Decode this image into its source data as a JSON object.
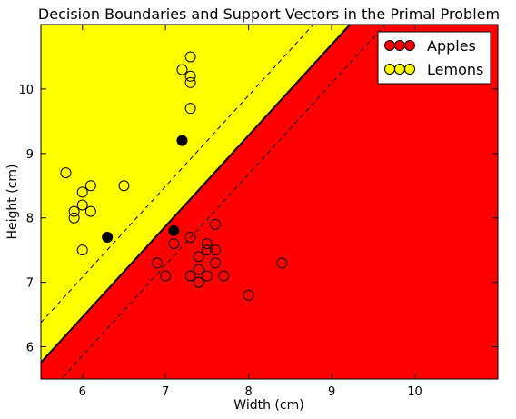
{
  "chart_data": {
    "type": "scatter",
    "title": "Decision Boundaries and Support Vectors in the Primal Problem",
    "xlabel": "Width (cm)",
    "ylabel": "Height (cm)",
    "xlim": [
      5.5,
      11.0
    ],
    "ylim": [
      5.5,
      11.0
    ],
    "xticks": [
      6,
      7,
      8,
      9,
      10
    ],
    "yticks": [
      6,
      7,
      8,
      9,
      10
    ],
    "grid": false,
    "legend_placement": "top-right",
    "regions": [
      {
        "class": "Lemons",
        "side": "above-boundary",
        "color": "#ffff00"
      },
      {
        "class": "Apples",
        "side": "below-boundary",
        "color": "#ff0000"
      }
    ],
    "boundary": {
      "slope": 1.41,
      "intercept": -2.0
    },
    "margins": [
      {
        "slope": 1.41,
        "intercept": -1.38
      },
      {
        "slope": 1.41,
        "intercept": -2.6
      }
    ],
    "series": [
      {
        "name": "Apples",
        "color": "#ff0000",
        "points": [
          [
            7.1,
            7.6
          ],
          [
            7.3,
            7.7
          ],
          [
            7.6,
            7.9
          ],
          [
            7.5,
            7.6
          ],
          [
            7.5,
            7.5
          ],
          [
            7.6,
            7.5
          ],
          [
            7.4,
            7.4
          ],
          [
            7.6,
            7.3
          ],
          [
            6.9,
            7.3
          ],
          [
            7.4,
            7.2
          ],
          [
            7.4,
            7.2
          ],
          [
            7.0,
            7.1
          ],
          [
            7.3,
            7.1
          ],
          [
            7.5,
            7.1
          ],
          [
            7.7,
            7.1
          ],
          [
            7.4,
            7.0
          ],
          [
            8.0,
            6.8
          ],
          [
            8.4,
            7.3
          ]
        ]
      },
      {
        "name": "Lemons",
        "color": "#ffff00",
        "points": [
          [
            7.3,
            10.5
          ],
          [
            7.2,
            10.3
          ],
          [
            7.3,
            10.2
          ],
          [
            7.3,
            10.1
          ],
          [
            7.3,
            9.7
          ],
          [
            5.8,
            8.7
          ],
          [
            6.1,
            8.5
          ],
          [
            6.5,
            8.5
          ],
          [
            6.0,
            8.4
          ],
          [
            6.0,
            8.2
          ],
          [
            5.9,
            8.1
          ],
          [
            6.1,
            8.1
          ],
          [
            5.9,
            8.0
          ],
          [
            6.0,
            7.5
          ]
        ]
      }
    ],
    "support_vectors": [
      [
        7.2,
        9.2
      ],
      [
        6.3,
        7.7
      ],
      [
        7.1,
        7.8
      ]
    ]
  }
}
